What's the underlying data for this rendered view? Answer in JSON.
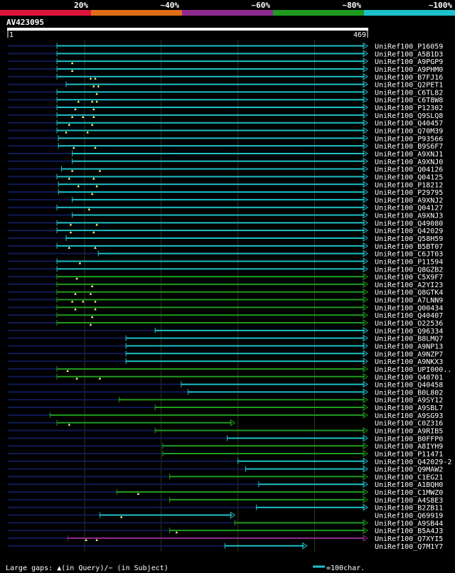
{
  "chart_data": {
    "type": "blast-alignment",
    "query_id": "AV423095",
    "query_length_label": "469",
    "query_start_label": "1",
    "query_length": 469,
    "legend": [
      {
        "label": "20%",
        "color": "#dc143c"
      },
      {
        "label": "~40%",
        "color": "#e06e16"
      },
      {
        "label": "~60%",
        "color": "#8e2a8e"
      },
      {
        "label": "~80%",
        "color": "#1e9b1e"
      },
      {
        "label": "~100%",
        "color": "#1cc0c8"
      }
    ],
    "colors": {
      "teal": "#1cc0c8",
      "green": "#1e9b1e",
      "purple": "#8e2a8e",
      "dark": "#0f1a55"
    },
    "footer_left": "Large gaps: ▲(in Query)/− (in Subject)",
    "footer_right": "=100char.",
    "hits": [
      {
        "label": "UniRef100_P16059",
        "start": 64,
        "end": 469,
        "color": "teal",
        "marks": []
      },
      {
        "label": "UniRef100_A5B1D3",
        "start": 64,
        "end": 469,
        "color": "teal",
        "marks": []
      },
      {
        "label": "UniRef100_A9PGP9",
        "start": 64,
        "end": 469,
        "color": "teal",
        "marks": [
          84
        ]
      },
      {
        "label": "UniRef100_A9PHM0",
        "start": 64,
        "end": 469,
        "color": "teal",
        "marks": [
          84
        ]
      },
      {
        "label": "UniRef100_B7FJ16",
        "start": 64,
        "end": 469,
        "color": "teal",
        "marks": [
          114,
          108
        ]
      },
      {
        "label": "UniRef100_Q2PET1",
        "start": 76,
        "end": 469,
        "color": "teal",
        "marks": [
          112,
          118
        ]
      },
      {
        "label": "UniRef100_C6TL82",
        "start": 64,
        "end": 469,
        "color": "teal",
        "marks": [
          116
        ]
      },
      {
        "label": "UniRef100_C6T8W8",
        "start": 64,
        "end": 469,
        "color": "teal",
        "marks": [
          92,
          110,
          116
        ]
      },
      {
        "label": "UniRef100_P12302",
        "start": 64,
        "end": 469,
        "color": "teal",
        "marks": [
          88,
          112
        ]
      },
      {
        "label": "UniRef100_Q9SLQ8",
        "start": 64,
        "end": 469,
        "color": "teal",
        "marks": [
          84,
          98,
          112
        ]
      },
      {
        "label": "UniRef100_Q40457",
        "start": 64,
        "end": 469,
        "color": "teal",
        "marks": [
          80,
          110
        ]
      },
      {
        "label": "UniRef100_Q70M39",
        "start": 64,
        "end": 469,
        "color": "teal",
        "marks": [
          76,
          104
        ]
      },
      {
        "label": "UniRef100_P93566",
        "start": 66,
        "end": 469,
        "color": "teal",
        "marks": []
      },
      {
        "label": "UniRef100_B9S6F7",
        "start": 66,
        "end": 469,
        "color": "teal",
        "marks": [
          86,
          114
        ]
      },
      {
        "label": "UniRef100_A9XNJ1",
        "start": 84,
        "end": 469,
        "color": "teal",
        "marks": []
      },
      {
        "label": "UniRef100_A9XNJ0",
        "start": 84,
        "end": 469,
        "color": "teal",
        "marks": []
      },
      {
        "label": "UniRef100_Q04126",
        "start": 70,
        "end": 469,
        "color": "teal",
        "marks": [
          84,
          120
        ]
      },
      {
        "label": "UniRef100_Q04125",
        "start": 64,
        "end": 469,
        "color": "teal",
        "marks": [
          80,
          112
        ]
      },
      {
        "label": "UniRef100_P18212",
        "start": 66,
        "end": 469,
        "color": "teal",
        "marks": [
          92,
          116
        ]
      },
      {
        "label": "UniRef100_P29795",
        "start": 66,
        "end": 469,
        "color": "teal",
        "marks": [
          110
        ]
      },
      {
        "label": "UniRef100_A9XNJ2",
        "start": 84,
        "end": 469,
        "color": "teal",
        "marks": []
      },
      {
        "label": "UniRef100_Q04127",
        "start": 64,
        "end": 469,
        "color": "teal",
        "marks": [
          106
        ]
      },
      {
        "label": "UniRef100_A9XNJ3",
        "start": 84,
        "end": 469,
        "color": "teal",
        "marks": []
      },
      {
        "label": "UniRef100_Q49080",
        "start": 64,
        "end": 469,
        "color": "teal",
        "marks": [
          82,
          116
        ]
      },
      {
        "label": "UniRef100_Q42029",
        "start": 64,
        "end": 469,
        "color": "teal",
        "marks": [
          82,
          112
        ]
      },
      {
        "label": "UniRef100_Q58H59",
        "start": 76,
        "end": 469,
        "color": "teal",
        "marks": []
      },
      {
        "label": "UniRef100_B5BT07",
        "start": 64,
        "end": 469,
        "color": "teal",
        "marks": [
          80,
          114
        ]
      },
      {
        "label": "UniRef100_C6JT03",
        "start": 118,
        "end": 469,
        "color": "teal",
        "marks": []
      },
      {
        "label": "UniRef100_P11594",
        "start": 64,
        "end": 469,
        "color": "teal",
        "marks": [
          94
        ]
      },
      {
        "label": "UniRef100_Q8GZB2",
        "start": 64,
        "end": 469,
        "color": "teal",
        "marks": []
      },
      {
        "label": "UniRef100_C5X9F7",
        "start": 64,
        "end": 469,
        "color": "green",
        "marks": [
          90
        ]
      },
      {
        "label": "UniRef100_A2YI23",
        "start": 64,
        "end": 469,
        "color": "green",
        "marks": [
          110
        ]
      },
      {
        "label": "UniRef100_Q8GTK4",
        "start": 64,
        "end": 469,
        "color": "green",
        "marks": [
          88,
          108
        ]
      },
      {
        "label": "UniRef100_A7LNN9",
        "start": 64,
        "end": 469,
        "color": "green",
        "marks": [
          84,
          98,
          114
        ]
      },
      {
        "label": "UniRef100_Q00434",
        "start": 64,
        "end": 469,
        "color": "green",
        "marks": [
          88,
          114
        ]
      },
      {
        "label": "UniRef100_Q40407",
        "start": 64,
        "end": 469,
        "color": "green",
        "marks": [
          110
        ]
      },
      {
        "label": "UniRef100_O22536",
        "start": 64,
        "end": 469,
        "color": "green",
        "marks": [
          108
        ]
      },
      {
        "label": "UniRef100_Q96334",
        "start": 192,
        "end": 469,
        "color": "teal",
        "marks": []
      },
      {
        "label": "UniRef100_B8LMQ7",
        "start": 154,
        "end": 469,
        "color": "teal",
        "marks": []
      },
      {
        "label": "UniRef100_A9NP13",
        "start": 154,
        "end": 469,
        "color": "teal",
        "marks": []
      },
      {
        "label": "UniRef100_A9NZP7",
        "start": 154,
        "end": 469,
        "color": "teal",
        "marks": []
      },
      {
        "label": "UniRef100_A9NKX3",
        "start": 154,
        "end": 469,
        "color": "teal",
        "marks": []
      },
      {
        "label": "UniRef100_UPI000..",
        "start": 64,
        "end": 469,
        "color": "green",
        "marks": [
          78
        ]
      },
      {
        "label": "UniRef100_Q40701",
        "start": 64,
        "end": 469,
        "color": "green",
        "marks": [
          90,
          120
        ]
      },
      {
        "label": "UniRef100_Q40458",
        "start": 226,
        "end": 469,
        "color": "teal",
        "marks": []
      },
      {
        "label": "UniRef100_B0L802",
        "start": 235,
        "end": 469,
        "color": "teal",
        "marks": []
      },
      {
        "label": "UniRef100_A9SY12",
        "start": 145,
        "end": 469,
        "color": "green",
        "marks": []
      },
      {
        "label": "UniRef100_A9SBL7",
        "start": 192,
        "end": 469,
        "color": "green",
        "marks": []
      },
      {
        "label": "UniRef100_A9SG93",
        "start": 55,
        "end": 469,
        "color": "green",
        "marks": []
      },
      {
        "label": "UniRef100_C0Z316",
        "start": 64,
        "end": 296,
        "color": "green",
        "marks": [
          80
        ]
      },
      {
        "label": "UniRef100_A9RIB5",
        "start": 192,
        "end": 469,
        "color": "green",
        "marks": []
      },
      {
        "label": "UniRef100_B0FFP0",
        "start": 286,
        "end": 469,
        "color": "teal",
        "marks": []
      },
      {
        "label": "UniRef100_A8IYH9",
        "start": 202,
        "end": 469,
        "color": "green",
        "marks": []
      },
      {
        "label": "UniRef100_P11471",
        "start": 202,
        "end": 469,
        "color": "green",
        "marks": []
      },
      {
        "label": "UniRef100_Q42029-2",
        "start": 300,
        "end": 469,
        "color": "teal",
        "marks": []
      },
      {
        "label": "UniRef100_Q9MAW2",
        "start": 310,
        "end": 469,
        "color": "teal",
        "marks": []
      },
      {
        "label": "UniRef100_C1EG21",
        "start": 211,
        "end": 469,
        "color": "green",
        "marks": []
      },
      {
        "label": "UniRef100_A1BQH0",
        "start": 327,
        "end": 469,
        "color": "teal",
        "marks": []
      },
      {
        "label": "UniRef100_C1MWZ0",
        "start": 142,
        "end": 469,
        "color": "green",
        "marks": [
          170
        ]
      },
      {
        "label": "UniRef100_A4S8E3",
        "start": 211,
        "end": 469,
        "color": "green",
        "marks": []
      },
      {
        "label": "UniRef100_B2ZB11",
        "start": 324,
        "end": 469,
        "color": "teal",
        "marks": []
      },
      {
        "label": "UniRef100_Q69919",
        "start": 120,
        "end": 296,
        "color": "teal",
        "marks": [
          148
        ]
      },
      {
        "label": "UniRef100_A9SB44",
        "start": 296,
        "end": 469,
        "color": "green",
        "marks": []
      },
      {
        "label": "UniRef100_B5A4J3",
        "start": 211,
        "end": 469,
        "color": "green",
        "marks": [
          220
        ]
      },
      {
        "label": "UniRef100_Q7XYI5",
        "start": 78,
        "end": 469,
        "color": "purple",
        "marks": [
          102,
          116
        ]
      },
      {
        "label": "UniRef100_Q7M1Y7",
        "start": 283,
        "end": 390,
        "color": "teal",
        "marks": []
      }
    ]
  }
}
